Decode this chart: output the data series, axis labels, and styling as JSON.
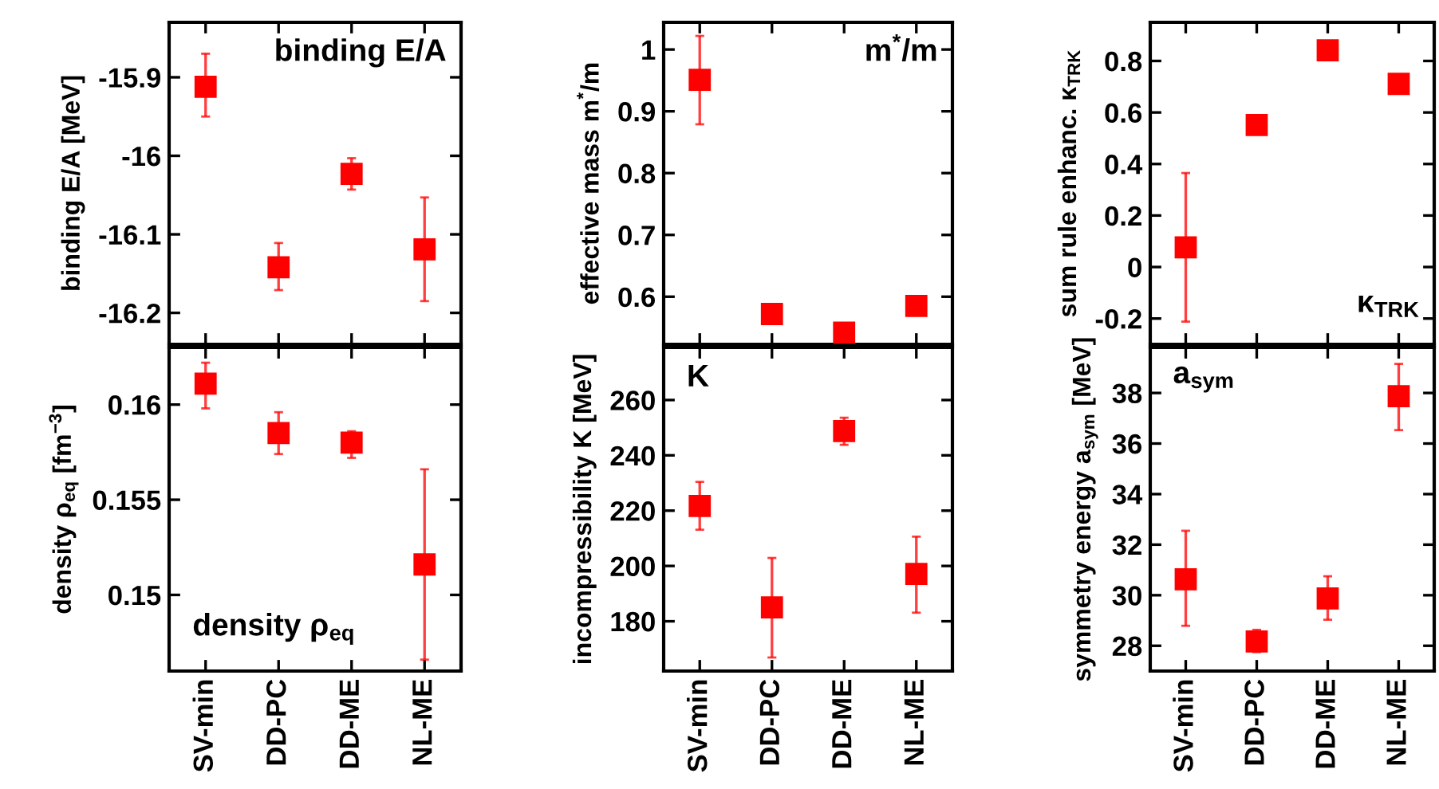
{
  "chart_data": [
    {
      "type": "scatter",
      "ylabel": "binding E/A [MeV]",
      "annotations": [
        "binding E/A"
      ],
      "categories": [
        null,
        null,
        null,
        null
      ],
      "marker": "square",
      "grid": false,
      "ylim": [
        -16.24,
        -15.83
      ],
      "yticks": [
        -15.9,
        -16,
        -16.1,
        -16.2
      ],
      "series": [
        {
          "color": "#ff0000",
          "values": [
            -15.912,
            -16.142,
            -16.023,
            -16.119
          ],
          "errors": [
            [
              -15.95,
              -15.87
            ],
            [
              -16.171,
              -16.111
            ],
            [
              -16.043,
              -16.003
            ],
            [
              -16.185,
              -16.053
            ]
          ]
        }
      ]
    },
    {
      "type": "scatter",
      "ylabel": "effective mass m$^{*}$/m",
      "annotations": [
        "m$^{*}$/m"
      ],
      "categories": [
        null,
        null,
        null,
        null
      ],
      "marker": "square",
      "grid": false,
      "ylim": [
        0.523,
        1.044
      ],
      "yticks": [
        1,
        0.9,
        0.8,
        0.7,
        0.6
      ],
      "series": [
        {
          "color": "#ff0000",
          "values": [
            0.951,
            0.572,
            0.542,
            0.585
          ],
          "errors": [
            [
              0.879,
              1.022
            ],
            null,
            null,
            null
          ]
        }
      ]
    },
    {
      "type": "scatter",
      "ylabel": "sum rule enhanc. κ$_{TRK}$",
      "annotations": [
        "κ$_{TRK}$"
      ],
      "categories": [
        null,
        null,
        null,
        null
      ],
      "marker": "square",
      "grid": false,
      "ylim": [
        -0.3,
        0.95
      ],
      "yticks": [
        0.8,
        0.6,
        0.4,
        0.2,
        0,
        -0.2
      ],
      "series": [
        {
          "color": "#ff0000",
          "values": [
            0.076,
            0.551,
            0.841,
            0.711
          ],
          "errors": [
            [
              -0.212,
              0.365
            ],
            null,
            null,
            null
          ]
        }
      ]
    },
    {
      "type": "scatter",
      "ylabel": "density ρ$_{eq}$ [fm$^{−3}$]",
      "annotations": [
        "density ρ$_{eq}$"
      ],
      "categories": [
        "SV-min",
        "DD-PC",
        "DD-ME",
        "NL-ME"
      ],
      "marker": "square",
      "grid": false,
      "ylim": [
        0.146,
        0.163
      ],
      "yticks": [
        0.16,
        0.155,
        0.15
      ],
      "series": [
        {
          "color": "#ff0000",
          "values": [
            0.1611,
            0.1585,
            0.158,
            0.1516
          ],
          "errors": [
            [
              0.1598,
              0.1622
            ],
            [
              0.1574,
              0.1596
            ],
            [
              0.1572,
              0.1586
            ],
            [
              0.1466,
              0.1566
            ]
          ]
        }
      ]
    },
    {
      "type": "scatter",
      "ylabel": "incompressibility K [MeV]",
      "annotations": [
        "K"
      ],
      "categories": [
        "SV-min",
        "DD-PC",
        "DD-ME",
        "NL-ME"
      ],
      "marker": "square",
      "grid": false,
      "ylim": [
        162,
        279
      ],
      "yticks": [
        260,
        240,
        220,
        200,
        180
      ],
      "series": [
        {
          "color": "#ff0000",
          "values": [
            221.7,
            185.0,
            248.8,
            197.1
          ],
          "errors": [
            [
              213.1,
              230.4
            ],
            [
              166.9,
              202.9
            ],
            [
              243.8,
              253.6
            ],
            [
              183.1,
              210.6
            ]
          ]
        }
      ]
    },
    {
      "type": "scatter",
      "ylabel": "symmetry energy a$_{sym}$ [MeV]",
      "annotations": [
        "a$_{sym}$"
      ],
      "categories": [
        "SV-min",
        "DD-PC",
        "DD-ME",
        "NL-ME"
      ],
      "marker": "square",
      "grid": false,
      "ylim": [
        27.0,
        39.8
      ],
      "yticks": [
        38,
        36,
        34,
        32,
        30,
        28
      ],
      "series": [
        {
          "color": "#ff0000",
          "values": [
            30.63,
            28.17,
            29.87,
            37.87
          ],
          "errors": [
            [
              28.79,
              32.55
            ],
            [
              27.75,
              28.63
            ],
            [
              29.03,
              30.75
            ],
            [
              36.53,
              39.15
            ]
          ]
        }
      ]
    }
  ]
}
